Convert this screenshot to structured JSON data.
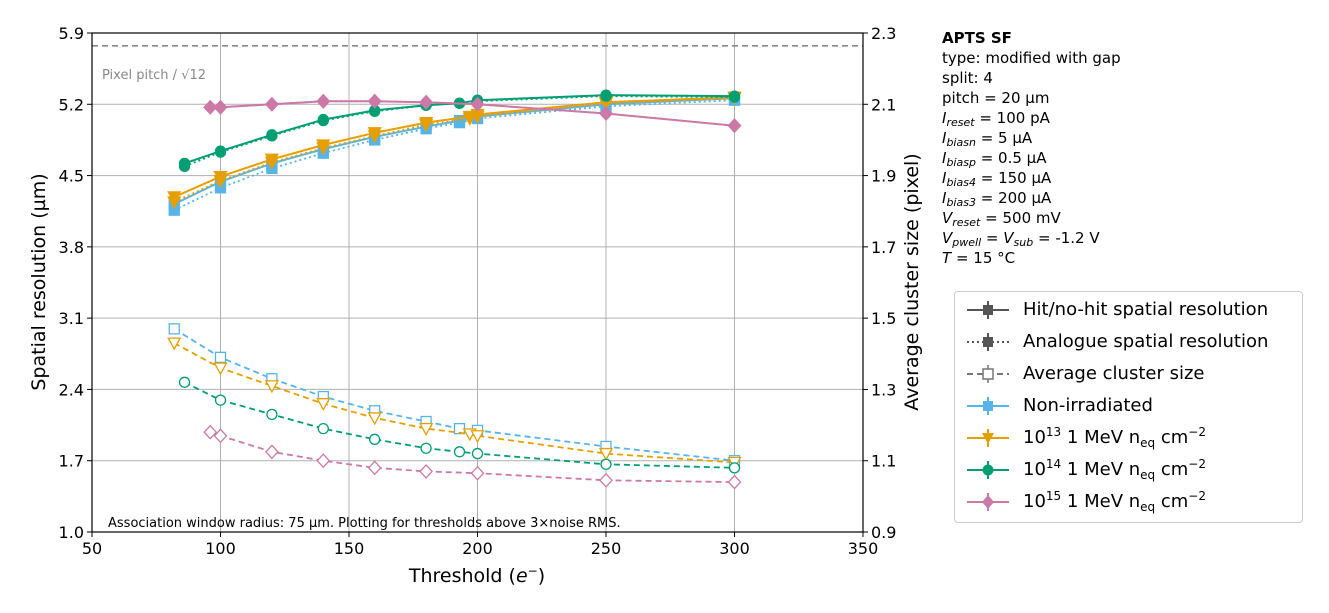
{
  "chart_data": {
    "type": "line",
    "xlabel": "Threshold (e⁻)",
    "ylabel_left": "Spatial resolution (µm)",
    "ylabel_right": "Average cluster size (pixel)",
    "xlim": [
      50,
      350
    ],
    "ylim_left": [
      1.0,
      5.9
    ],
    "ylim_right": [
      0.9,
      2.3
    ],
    "xticks": [
      "50",
      "100",
      "150",
      "200",
      "250",
      "300",
      "350"
    ],
    "yticks_left": [
      "1.0",
      "1.7",
      "2.4",
      "3.1",
      "3.8",
      "4.5",
      "5.2",
      "5.9"
    ],
    "yticks_right": [
      "0.9",
      "1.1",
      "1.3",
      "1.5",
      "1.7",
      "1.9",
      "2.1",
      "2.3"
    ],
    "grid": true,
    "pixel_pitch_line": {
      "label": "Pixel pitch / √12",
      "value": 5.774
    },
    "footnote": "Association window radius: 75 µm. Plotting for thresholds above 3×noise RMS.",
    "series": [
      {
        "name": "Non-irradiated",
        "color": "#56b4e9",
        "marker": "square",
        "x": [
          82,
          100,
          120,
          140,
          160,
          180,
          193,
          200,
          250,
          300
        ],
        "hit_no_hit_resolution": [
          4.22,
          4.44,
          4.62,
          4.76,
          4.88,
          4.98,
          5.04,
          5.08,
          5.2,
          5.26
        ],
        "analogue_resolution": [
          4.16,
          4.38,
          4.57,
          4.72,
          4.85,
          4.96,
          5.02,
          5.06,
          5.18,
          5.24
        ],
        "avg_cluster_size": [
          1.47,
          1.39,
          1.33,
          1.28,
          1.24,
          1.21,
          1.19,
          1.185,
          1.14,
          1.1
        ]
      },
      {
        "name": "10^13 1 MeV n_eq cm^-2",
        "color": "#e69f00",
        "marker": "triangle-down",
        "x": [
          82,
          100,
          120,
          140,
          160,
          180,
          197,
          200,
          250,
          300
        ],
        "hit_no_hit_resolution": [
          4.29,
          4.49,
          4.66,
          4.8,
          4.92,
          5.02,
          5.08,
          5.1,
          5.22,
          5.27
        ],
        "analogue_resolution": [
          4.24,
          4.45,
          4.63,
          4.77,
          4.89,
          5.0,
          5.06,
          5.08,
          5.21,
          5.26
        ],
        "avg_cluster_size": [
          1.43,
          1.36,
          1.31,
          1.26,
          1.22,
          1.19,
          1.175,
          1.17,
          1.12,
          1.095
        ]
      },
      {
        "name": "10^14 1 MeV n_eq cm^-2",
        "color": "#009e73",
        "marker": "circle",
        "x": [
          86,
          100,
          120,
          140,
          160,
          180,
          193,
          200,
          250,
          300
        ],
        "hit_no_hit_resolution": [
          4.62,
          4.74,
          4.9,
          5.05,
          5.14,
          5.19,
          5.21,
          5.24,
          5.29,
          5.28
        ],
        "analogue_resolution": [
          4.59,
          4.73,
          4.89,
          5.04,
          5.13,
          5.19,
          5.21,
          5.23,
          5.28,
          5.27
        ],
        "avg_cluster_size": [
          1.32,
          1.27,
          1.23,
          1.19,
          1.16,
          1.135,
          1.125,
          1.12,
          1.09,
          1.08
        ]
      },
      {
        "name": "10^15 1 MeV n_eq cm^-2",
        "color": "#cc79a7",
        "marker": "diamond",
        "x": [
          96,
          100,
          120,
          140,
          160,
          180,
          200,
          250,
          300
        ],
        "hit_no_hit_resolution": [
          5.17,
          5.17,
          5.2,
          5.23,
          5.23,
          5.22,
          5.2,
          5.11,
          4.99
        ],
        "analogue_resolution": [
          5.17,
          5.17,
          5.2,
          5.23,
          5.23,
          5.22,
          5.2,
          5.11,
          4.99
        ],
        "avg_cluster_size": [
          1.18,
          1.17,
          1.125,
          1.1,
          1.08,
          1.07,
          1.065,
          1.045,
          1.04
        ]
      }
    ]
  },
  "info": {
    "title": "APTS SF",
    "type_line": "type: modified with gap",
    "split_line": "split:  4",
    "pitch_line": "pitch = 20 µm",
    "i_reset": "= 100 pA",
    "i_biasn": "= 5 µA",
    "i_biasp": "= 0.5 µA",
    "i_bias4": "= 150 µA",
    "i_bias3": "= 200 µA",
    "v_reset": "= 500 mV",
    "v_pwell_eq": "=",
    "v_sub_val": "= -1.2 V",
    "temp": "= 15 °C"
  },
  "legend": {
    "hit": "Hit/no-hit spatial resolution",
    "analogue": "Analogue spatial resolution",
    "cluster": "Average cluster size",
    "nonirr": "Non-irradiated",
    "fluence_unit": " 1 MeV n",
    "eq": "eq",
    "cm": " cm",
    "minus2": "−2",
    "f13_base": "10",
    "f13_exp": "13",
    "f14_base": "10",
    "f14_exp": "14",
    "f15_base": "10",
    "f15_exp": "15"
  }
}
